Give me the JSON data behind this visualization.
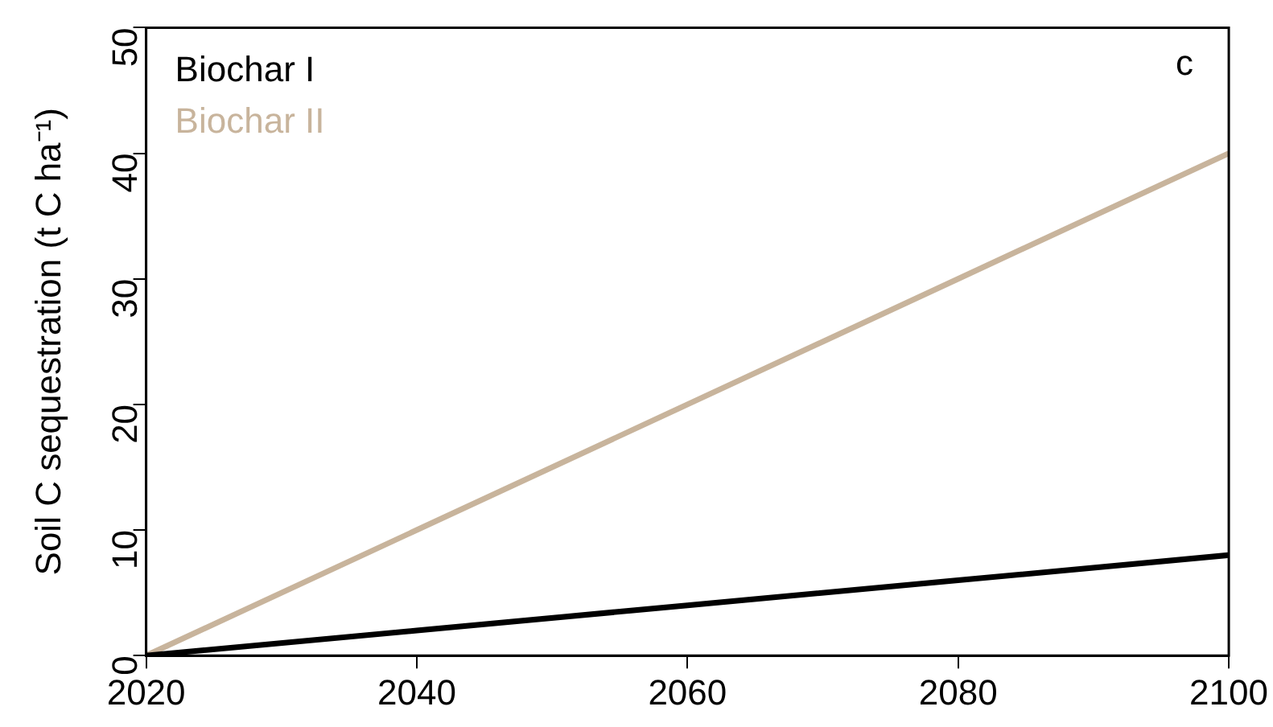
{
  "chart_data": {
    "type": "line",
    "ylabel": "Soil C sequestration (t C ha⁻¹)",
    "x": [
      2020,
      2040,
      2060,
      2080,
      2100
    ],
    "series": [
      {
        "name": "Biochar I",
        "color": "#000000",
        "values": [
          0,
          2,
          4,
          6,
          8
        ]
      },
      {
        "name": "Biochar II",
        "color": "#c8b49c",
        "values": [
          0,
          10,
          20,
          30,
          40
        ]
      }
    ],
    "xlim": [
      2020,
      2100
    ],
    "xticks": [
      2020,
      2040,
      2060,
      2080,
      2100
    ],
    "ylim": [
      0,
      50
    ],
    "yticks": [
      0,
      10,
      20,
      30,
      40,
      50
    ],
    "grid": false,
    "legend": "top left",
    "marker": "none",
    "line_style": "solid",
    "annotations": [
      "c"
    ]
  }
}
